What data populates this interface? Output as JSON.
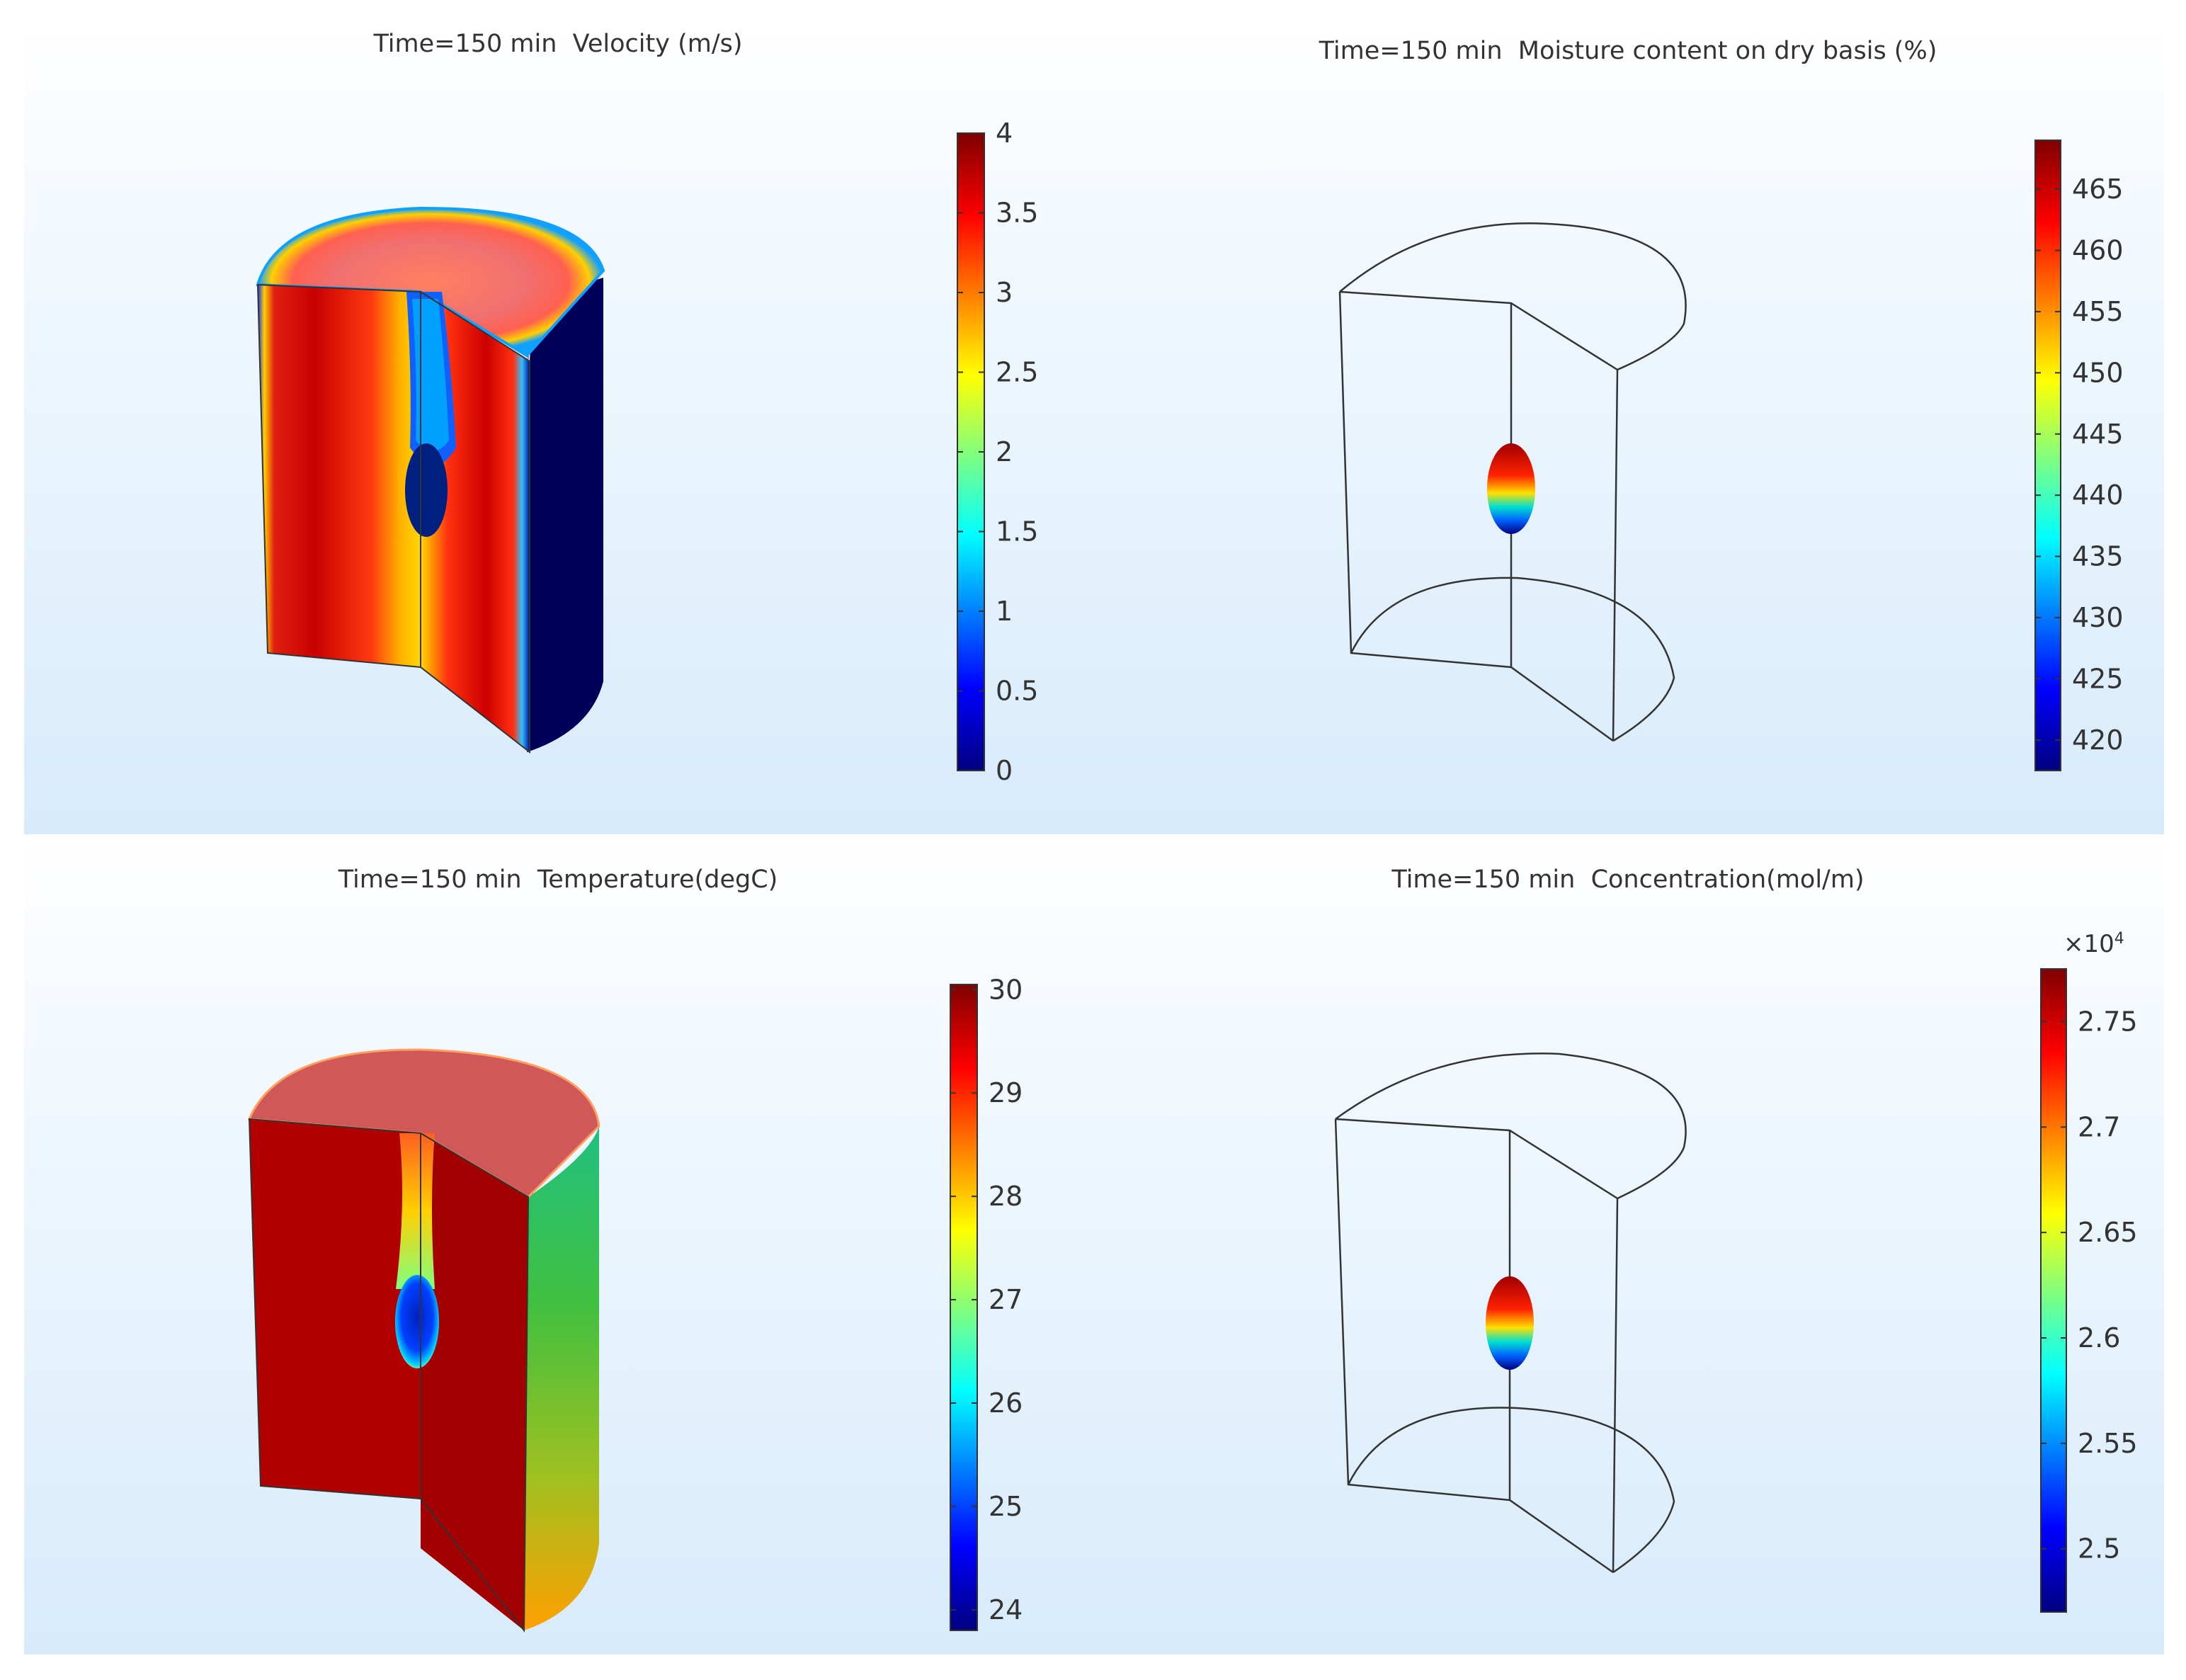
{
  "panels": [
    {
      "title": "Time=150 min  Velocity (m/s)",
      "colorbar": {
        "ticks": [
          "0",
          "0.5",
          "1",
          "1.5",
          "2",
          "2.5",
          "3",
          "3.5",
          "4"
        ],
        "min": 0,
        "max": 4,
        "multiplier": ""
      }
    },
    {
      "title": "Time=150 min  Moisture content on dry basis (%)",
      "colorbar": {
        "ticks": [
          "420",
          "425",
          "430",
          "435",
          "440",
          "445",
          "450",
          "455",
          "460",
          "465"
        ],
        "min": 417.5,
        "max": 469,
        "multiplier": ""
      }
    },
    {
      "title": "Time=150 min  Temperature(degC)",
      "colorbar": {
        "ticks": [
          "24",
          "25",
          "26",
          "27",
          "28",
          "29",
          "30"
        ],
        "min": 23.8,
        "max": 30.05,
        "multiplier": ""
      }
    },
    {
      "title": "Time=150 min  Concentration(mol/m)",
      "colorbar": {
        "ticks": [
          "2.5",
          "2.55",
          "2.6",
          "2.65",
          "2.7",
          "2.75"
        ],
        "min": 2.47,
        "max": 2.775,
        "multiplier": "×10",
        "multiplier_exp": "4"
      }
    }
  ],
  "colors": {
    "colormap": [
      "#00007f",
      "#0000ff",
      "#00ffff",
      "#ffff00",
      "#ff0000",
      "#7f0000"
    ],
    "outline": "#333333"
  }
}
